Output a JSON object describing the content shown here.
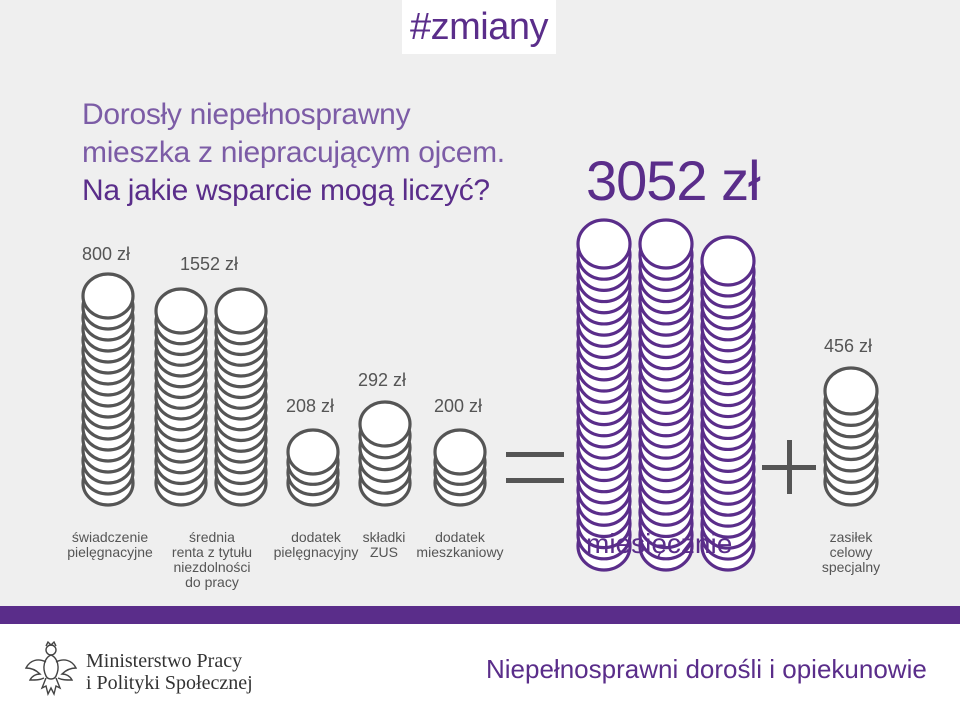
{
  "colors": {
    "background": "#efefef",
    "purple": "#5a2d8a",
    "grey_coin": "#555555",
    "text": "#555555"
  },
  "hashtag": "#zmiany",
  "headline": {
    "line1": "Dorosły niepełnosprawny",
    "line2": "mieszka z niepracującym ojcem.",
    "line3": "Na jakie wsparcie mogą liczyć?"
  },
  "total": "3052 zł",
  "benefits": [
    {
      "amount": "800 zł",
      "label": "świadczenie\npielęgnacyjne"
    },
    {
      "amount": "1552 zł",
      "label": "średnia\nrenta z tytułu\nniezdolności\ndo pracy"
    },
    {
      "amount": "208 zł",
      "label": "dodatek\npielęgnacyjny"
    },
    {
      "amount": "292 zł",
      "label": "składki\nZUS"
    },
    {
      "amount": "200 zł",
      "label": "dodatek\nmieszkaniowy"
    },
    {
      "amount": "456 zł",
      "label": "zasiłek\ncelowy\nspecjalny"
    }
  ],
  "equals_icon": "equals-sign",
  "plus_icon": "plus-sign",
  "monthly_label": "miesięcznie",
  "footer": {
    "ministry_line1": "Ministerstwo Pracy",
    "ministry_line2": "i Polityki Społecznej",
    "tagline": "Niepełnosprawni dorośli i opiekunowie",
    "emblem_icon": "polish-eagle-emblem"
  }
}
